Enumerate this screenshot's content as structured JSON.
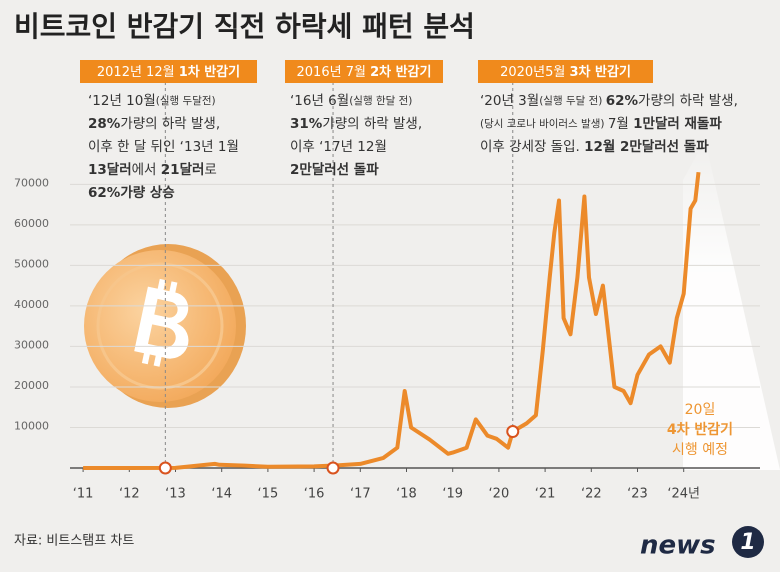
{
  "chart_data": {
    "type": "line",
    "title": "비트코인 반감기 직전 하락세 패턴 분석",
    "source": "자료: 비트스탬프 차트",
    "logo": {
      "word": "news",
      "digit": "1"
    },
    "color": "#ec8a2a",
    "xlim": [
      2010.5,
      2025.5
    ],
    "ylim": [
      0,
      76000
    ],
    "xticks": [
      {
        "value": 2011,
        "label": "‘11"
      },
      {
        "value": 2012,
        "label": "‘12"
      },
      {
        "value": 2013,
        "label": "‘13"
      },
      {
        "value": 2014,
        "label": "‘14"
      },
      {
        "value": 2015,
        "label": "‘15"
      },
      {
        "value": 2016,
        "label": "‘16"
      },
      {
        "value": 2017,
        "label": "‘17"
      },
      {
        "value": 2018,
        "label": "‘18"
      },
      {
        "value": 2019,
        "label": "‘19"
      },
      {
        "value": 2020,
        "label": "‘20"
      },
      {
        "value": 2021,
        "label": "‘21"
      },
      {
        "value": 2022,
        "label": "‘22"
      },
      {
        "value": 2023,
        "label": "‘23"
      },
      {
        "value": 2024,
        "label": "‘24년"
      }
    ],
    "yticks": [
      10000,
      20000,
      30000,
      40000,
      50000,
      60000,
      70000
    ],
    "x": [
      2011.0,
      2012.0,
      2013.0,
      2013.85,
      2013.95,
      2014.5,
      2015.0,
      2016.0,
      2016.5,
      2017.0,
      2017.5,
      2017.8,
      2017.96,
      2018.1,
      2018.5,
      2018.9,
      2019.0,
      2019.3,
      2019.5,
      2019.75,
      2019.95,
      2020.2,
      2020.3,
      2020.6,
      2020.8,
      2020.95,
      2021.1,
      2021.2,
      2021.3,
      2021.4,
      2021.55,
      2021.7,
      2021.85,
      2021.95,
      2022.1,
      2022.25,
      2022.4,
      2022.5,
      2022.7,
      2022.85,
      2023.0,
      2023.25,
      2023.5,
      2023.7,
      2023.85,
      2024.0,
      2024.15,
      2024.25,
      2024.32
    ],
    "values": [
      0,
      5,
      13,
      1000,
      800,
      600,
      300,
      400,
      650,
      1000,
      2500,
      5000,
      19000,
      10000,
      7000,
      3500,
      3800,
      5000,
      12000,
      8000,
      7200,
      5000,
      9000,
      11000,
      13000,
      29000,
      47000,
      58000,
      66000,
      37000,
      33000,
      47000,
      67000,
      47000,
      38000,
      45000,
      30000,
      20000,
      19000,
      16000,
      23000,
      28000,
      30000,
      26000,
      37000,
      43000,
      64000,
      66000,
      73000
    ],
    "halvings": [
      {
        "x": 2012.78,
        "value": 0
      },
      {
        "x": 2016.41,
        "value": 0
      },
      {
        "x": 2020.3,
        "value": 9000
      }
    ],
    "headers": [
      [
        {
          "text": "2012년 12월 ",
          "bold": false
        },
        {
          "text": "1차 반감기",
          "bold": true
        }
      ],
      [
        {
          "text": "2016년 7월 ",
          "bold": false
        },
        {
          "text": "2차 반감기",
          "bold": true
        }
      ],
      [
        {
          "text": "2020년5월 ",
          "bold": false
        },
        {
          "text": "3차 반감기",
          "bold": true
        }
      ]
    ],
    "annotations": [
      {
        "lines": [
          [
            {
              "text": "‘12년 10월",
              "bold": false,
              "small": false
            },
            {
              "text": "(실행 두달전)",
              "bold": false,
              "small": true
            }
          ],
          [
            {
              "text": "28%",
              "bold": true,
              "small": false
            },
            {
              "text": "가량의 하락 발생,",
              "bold": false,
              "small": false
            }
          ],
          [
            {
              "text": "이후 한 달 뒤인 ‘13년 1월",
              "bold": false,
              "small": false
            }
          ],
          [
            {
              "text": "13달러",
              "bold": true,
              "small": false
            },
            {
              "text": "에서 ",
              "bold": false,
              "small": false
            },
            {
              "text": "21달러",
              "bold": true,
              "small": false
            },
            {
              "text": "로",
              "bold": false,
              "small": false
            }
          ],
          [
            {
              "text": "62%가량 상승",
              "bold": true,
              "small": false
            }
          ]
        ]
      },
      {
        "lines": [
          [
            {
              "text": "‘16년 6월",
              "bold": false,
              "small": false
            },
            {
              "text": "(실행 한달 전)",
              "bold": false,
              "small": true
            }
          ],
          [
            {
              "text": "31%",
              "bold": true,
              "small": false
            },
            {
              "text": "가량의 하락 발생,",
              "bold": false,
              "small": false
            }
          ],
          [
            {
              "text": "이후 ‘17년 12월",
              "bold": false,
              "small": false
            }
          ],
          [
            {
              "text": "2만달러선 돌파",
              "bold": true,
              "small": false
            }
          ]
        ]
      },
      {
        "lines": [
          [
            {
              "text": "‘20년 3월",
              "bold": false,
              "small": false
            },
            {
              "text": "(실행 두달 전) ",
              "bold": false,
              "small": true
            },
            {
              "text": "62%",
              "bold": true,
              "small": false
            },
            {
              "text": "가량의 하락 발생,",
              "bold": false,
              "small": false
            }
          ],
          [
            {
              "text": "(당시 코로나 바이러스 발생) ",
              "bold": false,
              "small": true
            },
            {
              "text": "7월 ",
              "bold": false,
              "small": false
            },
            {
              "text": "1만달러 재돌파",
              "bold": true,
              "small": false
            }
          ],
          [
            {
              "text": "이후 강세장 돌입. ",
              "bold": false,
              "small": false
            },
            {
              "text": "12월 2만달러선 돌파",
              "bold": true,
              "small": false
            }
          ]
        ]
      }
    ],
    "next_halving": [
      "20일",
      "4차 반감기",
      "시행 예정"
    ]
  }
}
